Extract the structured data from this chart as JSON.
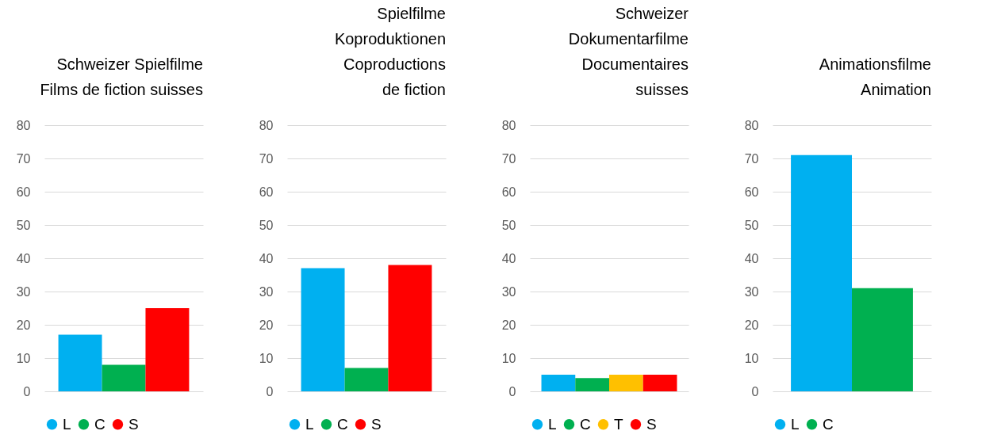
{
  "chart_data": [
    {
      "type": "bar",
      "title": "Schweizer Spielfilme\nFilms de fiction suisses",
      "categories": [
        null
      ],
      "series": [
        {
          "name": "L",
          "color": "#00b0f0",
          "values": [
            17
          ]
        },
        {
          "name": "C",
          "color": "#00b050",
          "values": [
            8
          ]
        },
        {
          "name": "S",
          "color": "#ff0000",
          "values": [
            25
          ]
        }
      ],
      "ylim": [
        0,
        80
      ],
      "yticks": [
        0,
        10,
        20,
        30,
        40,
        50,
        60,
        70,
        80
      ],
      "grid": "y",
      "legend": "bottom"
    },
    {
      "type": "bar",
      "title": "Spielfilme\nKoproduktionen\nCoproductions\nde fiction",
      "categories": [
        null
      ],
      "series": [
        {
          "name": "L",
          "color": "#00b0f0",
          "values": [
            37
          ]
        },
        {
          "name": "C",
          "color": "#00b050",
          "values": [
            7
          ]
        },
        {
          "name": "S",
          "color": "#ff0000",
          "values": [
            38
          ]
        }
      ],
      "ylim": [
        0,
        80
      ],
      "yticks": [
        0,
        10,
        20,
        30,
        40,
        50,
        60,
        70,
        80
      ],
      "grid": "y",
      "legend": "bottom"
    },
    {
      "type": "bar",
      "title": "Schweizer\nDokumentarfilme\nDocumentaires\nsuisses",
      "categories": [
        null
      ],
      "series": [
        {
          "name": "L",
          "color": "#00b0f0",
          "values": [
            5
          ]
        },
        {
          "name": "C",
          "color": "#00b050",
          "values": [
            4
          ]
        },
        {
          "name": "T",
          "color": "#ffc000",
          "values": [
            5
          ]
        },
        {
          "name": "S",
          "color": "#ff0000",
          "values": [
            5
          ]
        }
      ],
      "ylim": [
        0,
        80
      ],
      "yticks": [
        0,
        10,
        20,
        30,
        40,
        50,
        60,
        70,
        80
      ],
      "grid": "y",
      "legend": "bottom"
    },
    {
      "type": "bar",
      "title": "Animationsfilme\nAnimation",
      "categories": [
        null
      ],
      "series": [
        {
          "name": "L",
          "color": "#00b0f0",
          "values": [
            71
          ]
        },
        {
          "name": "C",
          "color": "#00b050",
          "values": [
            31
          ]
        }
      ],
      "ylim": [
        0,
        80
      ],
      "yticks": [
        0,
        10,
        20,
        30,
        40,
        50,
        60,
        70,
        80
      ],
      "grid": "y",
      "legend": "bottom"
    }
  ]
}
